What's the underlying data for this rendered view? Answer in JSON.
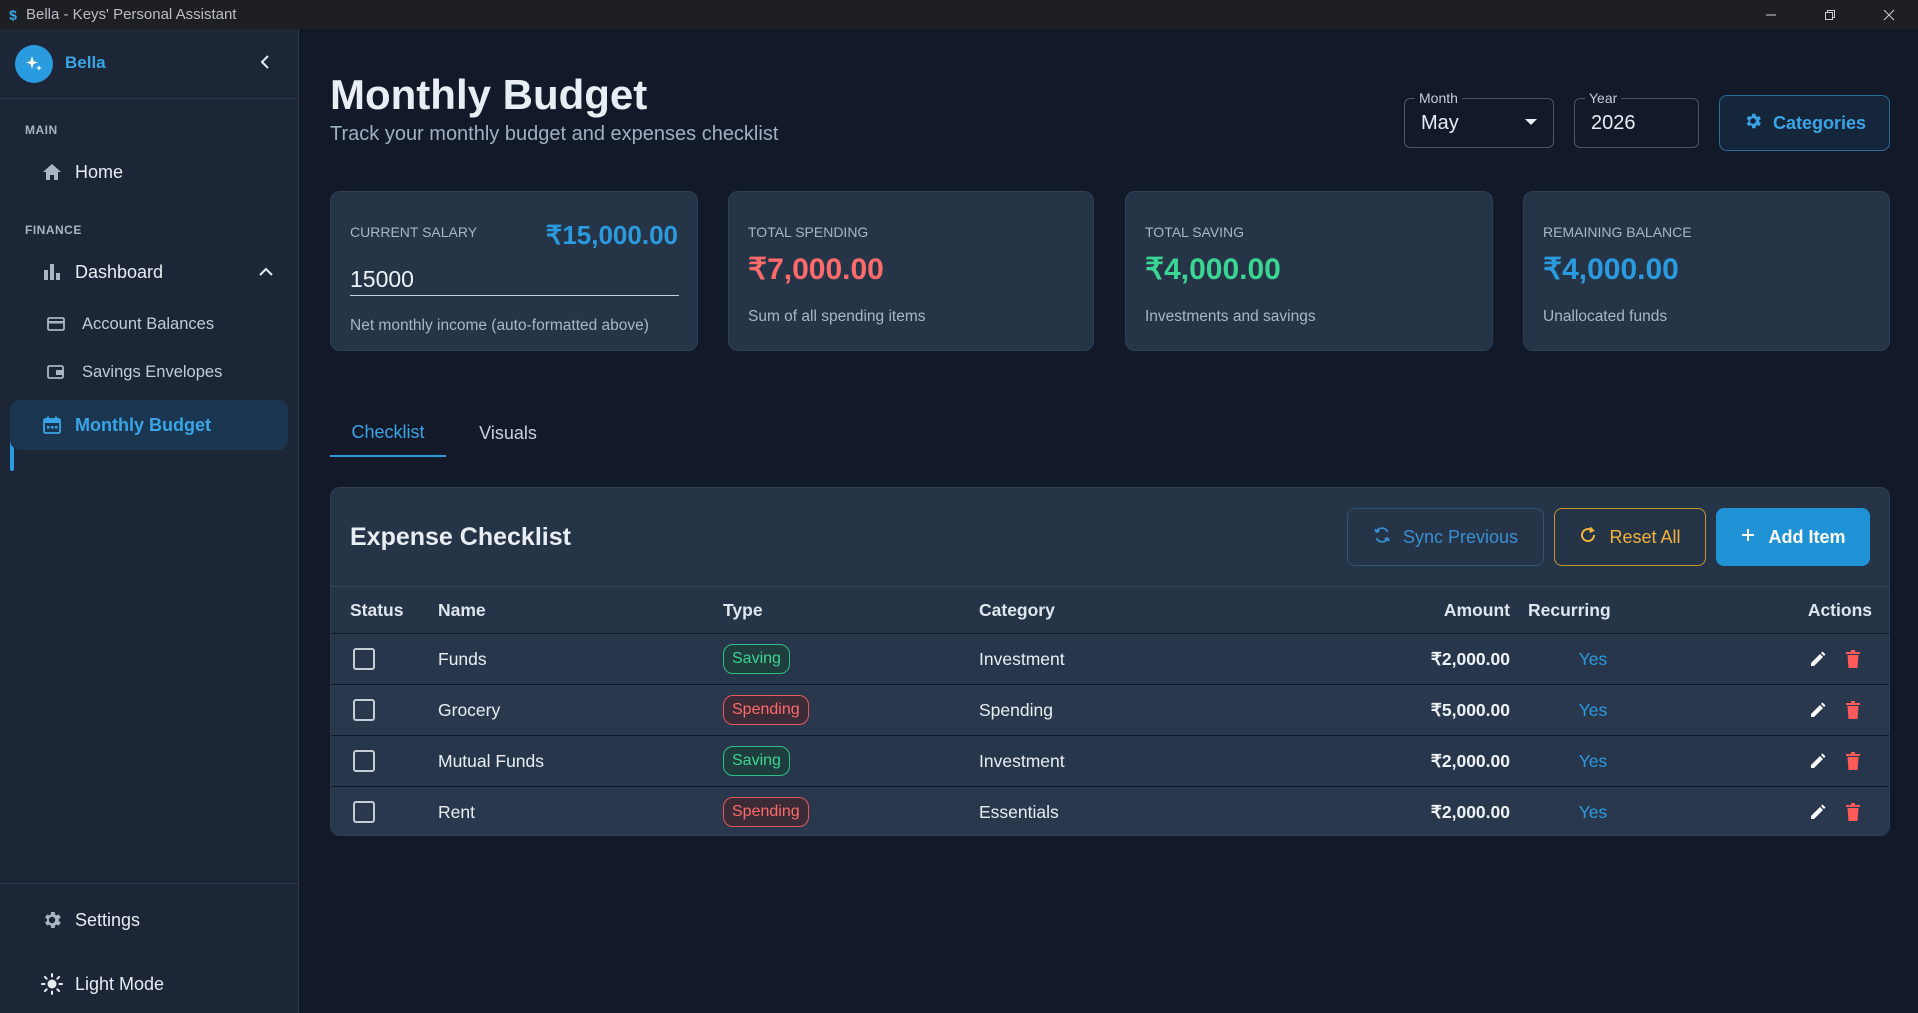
{
  "window": {
    "title": "Bella - Keys' Personal Assistant",
    "app_icon": "$"
  },
  "sidebar": {
    "brand": "Bella",
    "sections": {
      "main": "MAIN",
      "finance": "FINANCE"
    },
    "items": {
      "home": "Home",
      "dashboard": "Dashboard",
      "account_balances": "Account Balances",
      "savings_envelopes": "Savings Envelopes",
      "monthly_budget": "Monthly Budget",
      "settings": "Settings",
      "light_mode": "Light Mode"
    }
  },
  "header": {
    "title": "Monthly Budget",
    "subtitle": "Track your monthly budget and expenses checklist",
    "month": {
      "label": "Month",
      "value": "May"
    },
    "year": {
      "label": "Year",
      "value": "2026"
    },
    "categories_label": "Categories"
  },
  "cards": {
    "salary": {
      "label": "CURRENT SALARY",
      "formatted": "₹15,000.00",
      "input_value": "15000",
      "desc": "Net monthly income (auto-formatted above)"
    },
    "spending": {
      "label": "TOTAL SPENDING",
      "value": "₹7,000.00",
      "desc": "Sum of all spending items"
    },
    "saving": {
      "label": "TOTAL SAVING",
      "value": "₹4,000.00",
      "desc": "Investments and savings"
    },
    "remaining": {
      "label": "REMAINING BALANCE",
      "value": "₹4,000.00",
      "desc": "Unallocated funds"
    }
  },
  "tabs": {
    "checklist": "Checklist",
    "visuals": "Visuals"
  },
  "checklist": {
    "title": "Expense Checklist",
    "sync_label": "Sync Previous",
    "reset_label": "Reset All",
    "add_label": "Add Item",
    "columns": {
      "status": "Status",
      "name": "Name",
      "type": "Type",
      "category": "Category",
      "amount": "Amount",
      "recurring": "Recurring",
      "actions": "Actions"
    },
    "rows": [
      {
        "name": "Funds",
        "type": "Saving",
        "category": "Investment",
        "amount": "₹2,000.00",
        "recurring": "Yes",
        "checked": false
      },
      {
        "name": "Grocery",
        "type": "Spending",
        "category": "Spending",
        "amount": "₹5,000.00",
        "recurring": "Yes",
        "checked": false
      },
      {
        "name": "Mutual Funds",
        "type": "Saving",
        "category": "Investment",
        "amount": "₹2,000.00",
        "recurring": "Yes",
        "checked": false
      },
      {
        "name": "Rent",
        "type": "Spending",
        "category": "Essentials",
        "amount": "₹2,000.00",
        "recurring": "Yes",
        "checked": false
      }
    ]
  },
  "colors": {
    "accent": "#2b9be0",
    "spending": "#ff6b6b",
    "saving": "#3ad593",
    "reset": "#f0b43a",
    "background": "#121a2a",
    "surface": "#263448"
  },
  "icons": {
    "brand": "sparkle-icon",
    "collapse": "chevron-left-icon",
    "home": "home-icon",
    "dashboard": "bar-chart-icon",
    "account_balances": "credit-card-icon",
    "savings_envelopes": "wallet-icon",
    "monthly_budget": "calendar-icon",
    "settings": "gear-icon",
    "light_mode": "sun-icon"
  }
}
